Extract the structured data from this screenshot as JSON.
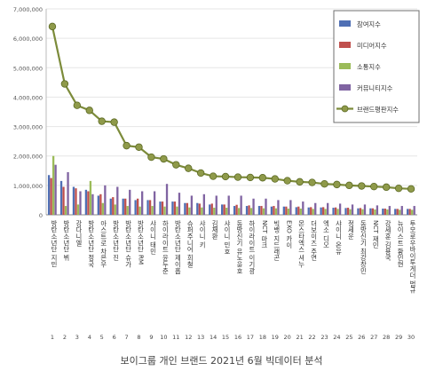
{
  "caption": "보이그룹 개인 브랜드 2021년 6월 빅데이터 분석",
  "chart_data": {
    "type": "bar",
    "title": "",
    "xlabel": "",
    "ylabel": "",
    "ylim": [
      0,
      7000000
    ],
    "yticks": [
      "0",
      "1,000,000",
      "2,000,000",
      "3,000,000",
      "4,000,000",
      "5,000,000",
      "6,000,000",
      "7,000,000"
    ],
    "grid": true,
    "legend_position": "top-right",
    "x_index_labels": [
      "1",
      "2",
      "3",
      "4",
      "5",
      "6",
      "7",
      "8",
      "9",
      "10",
      "11",
      "12",
      "13",
      "14",
      "15",
      "16",
      "17",
      "18",
      "19",
      "20",
      "21",
      "22",
      "23",
      "24",
      "25",
      "26",
      "27",
      "28",
      "29",
      "30"
    ],
    "categories": [
      "방탄소년단 지민",
      "방탄소년단 뷔",
      "강다니엘",
      "방탄소년단 정국",
      "아스트로 차은우",
      "방탄소년단 진",
      "방탄소년단 슈가",
      "방탄소년단 RM",
      "샤이니 태민",
      "하이라이트 윤두준",
      "방탄소년단 제이홉",
      "슈퍼주니어 희철",
      "샤이니 키",
      "김재환",
      "샤이니 민호",
      "동방신기 유노윤호",
      "하이라이트 이기광",
      "NCT 마크",
      "빅뱅 지드래곤",
      "EXO 카이",
      "몬스타엑스 셔누",
      "더보이즈 주연",
      "엑소 디오",
      "샤이니 온유",
      "정세운",
      "동방신기 최강창민",
      "NCT 재민",
      "강세훈 김용국",
      "뉴이스트 황민현",
      "투모로우바이투게더 범규"
    ],
    "series": [
      {
        "name": "참여지수",
        "color": "#4f6fb4",
        "values": [
          1350000,
          1150000,
          950000,
          850000,
          650000,
          550000,
          550000,
          500000,
          500000,
          450000,
          450000,
          400000,
          400000,
          350000,
          350000,
          300000,
          300000,
          300000,
          280000,
          280000,
          260000,
          250000,
          250000,
          240000,
          230000,
          220000,
          220000,
          210000,
          200000,
          200000
        ]
      },
      {
        "name": "미디어지수",
        "color": "#c0504d",
        "values": [
          1250000,
          950000,
          900000,
          800000,
          700000,
          600000,
          550000,
          550000,
          500000,
          450000,
          450000,
          400000,
          380000,
          380000,
          350000,
          340000,
          320000,
          300000,
          300000,
          280000,
          280000,
          260000,
          260000,
          250000,
          240000,
          230000,
          220000,
          210000,
          200000,
          200000
        ]
      },
      {
        "name": "소통지수",
        "color": "#9bbb59",
        "values": [
          2000000,
          300000,
          350000,
          1150000,
          400000,
          350000,
          300000,
          280000,
          300000,
          280000,
          280000,
          250000,
          250000,
          240000,
          240000,
          230000,
          230000,
          220000,
          220000,
          210000,
          210000,
          200000,
          200000,
          200000,
          190000,
          190000,
          180000,
          180000,
          170000,
          170000
        ]
      },
      {
        "name": "커뮤니티지수",
        "color": "#8064a2",
        "values": [
          1700000,
          1450000,
          800000,
          700000,
          1000000,
          950000,
          850000,
          800000,
          800000,
          1050000,
          750000,
          650000,
          700000,
          650000,
          650000,
          650000,
          550000,
          550000,
          500000,
          500000,
          450000,
          400000,
          400000,
          380000,
          350000,
          350000,
          320000,
          300000,
          300000,
          300000
        ]
      },
      {
        "name": "브랜드평판지수",
        "color": "#7c8b3a",
        "values": [
          6400000,
          4450000,
          3720000,
          3550000,
          3180000,
          3150000,
          2350000,
          2300000,
          1960000,
          1900000,
          1700000,
          1580000,
          1420000,
          1310000,
          1300000,
          1280000,
          1270000,
          1260000,
          1220000,
          1160000,
          1120000,
          1100000,
          1050000,
          1030000,
          1000000,
          980000,
          960000,
          940000,
          900000,
          880000
        ]
      }
    ]
  }
}
